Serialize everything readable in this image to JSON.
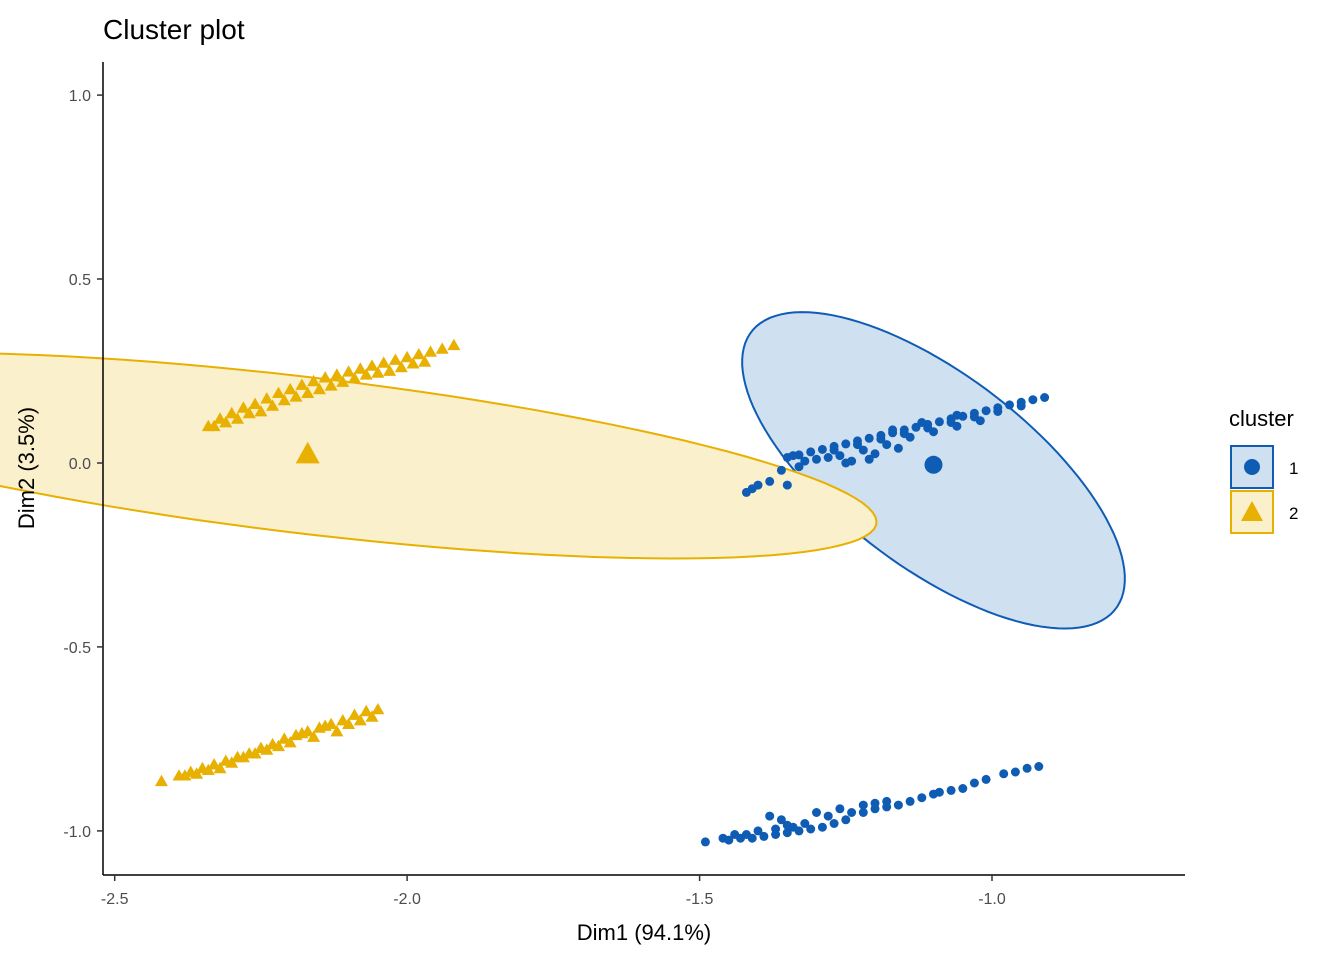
{
  "chart_data": {
    "type": "scatter",
    "title": "Cluster plot",
    "xlabel": "Dim1 (94.1%)",
    "ylabel": "Dim2 (3.5%)",
    "xlim": [
      -2.52,
      -0.67
    ],
    "ylim": [
      -1.12,
      1.09
    ],
    "xticks": [
      -2.5,
      -2.0,
      -1.5,
      -1.0
    ],
    "xtick_labels": [
      "-2.5",
      "-2.0",
      "-1.5",
      "-1.0"
    ],
    "yticks": [
      1.0,
      0.5,
      0.0,
      -0.5,
      -1.0
    ],
    "ytick_labels": [
      "1.0",
      "0.5",
      "0.0",
      "-0.5",
      "-1.0"
    ],
    "grid": false,
    "legend": {
      "title": "cluster",
      "position": "right",
      "entries": [
        {
          "label": "1",
          "shape": "circle",
          "color": "#0F5CB5"
        },
        {
          "label": "2",
          "shape": "triangle",
          "color": "#E8B000"
        }
      ]
    },
    "series": [
      {
        "name": "1",
        "shape": "circle",
        "color": "#0F5CB5",
        "fill": "#CFE0F0",
        "ellipse": {
          "center": [
            -1.1,
            -0.02
          ],
          "semi_axes": [
            0.205,
            0.5
          ],
          "angle_deg": 34
        },
        "centroid": [
          -1.1,
          -0.005
        ],
        "points": [
          [
            -0.91,
            0.178
          ],
          [
            -0.93,
            0.172
          ],
          [
            -0.95,
            0.165
          ],
          [
            -0.97,
            0.158
          ],
          [
            -0.99,
            0.15
          ],
          [
            -1.01,
            0.142
          ],
          [
            -1.03,
            0.135
          ],
          [
            -1.05,
            0.127
          ],
          [
            -1.07,
            0.12
          ],
          [
            -1.09,
            0.112
          ],
          [
            -1.11,
            0.105
          ],
          [
            -1.13,
            0.097
          ],
          [
            -1.15,
            0.09
          ],
          [
            -1.17,
            0.082
          ],
          [
            -1.19,
            0.075
          ],
          [
            -1.21,
            0.067
          ],
          [
            -1.23,
            0.06
          ],
          [
            -1.25,
            0.052
          ],
          [
            -1.27,
            0.045
          ],
          [
            -1.29,
            0.037
          ],
          [
            -1.31,
            0.03
          ],
          [
            -1.33,
            0.022
          ],
          [
            -1.35,
            0.015
          ],
          [
            -0.95,
            0.155
          ],
          [
            -0.99,
            0.14
          ],
          [
            -1.03,
            0.125
          ],
          [
            -1.07,
            0.11
          ],
          [
            -1.11,
            0.095
          ],
          [
            -1.15,
            0.08
          ],
          [
            -1.19,
            0.065
          ],
          [
            -1.23,
            0.05
          ],
          [
            -1.27,
            0.035
          ],
          [
            -1.02,
            0.115
          ],
          [
            -1.06,
            0.1
          ],
          [
            -1.1,
            0.085
          ],
          [
            -1.14,
            0.07
          ],
          [
            -1.18,
            0.05
          ],
          [
            -1.22,
            0.035
          ],
          [
            -1.26,
            0.02
          ],
          [
            -1.16,
            0.04
          ],
          [
            -1.2,
            0.025
          ],
          [
            -1.24,
            0.005
          ],
          [
            -1.28,
            0.015
          ],
          [
            -1.32,
            0.005
          ],
          [
            -1.06,
            0.13
          ],
          [
            -1.12,
            0.11
          ],
          [
            -1.17,
            0.09
          ],
          [
            -1.21,
            0.01
          ],
          [
            -1.25,
            0.0
          ],
          [
            -1.3,
            0.01
          ],
          [
            -1.34,
            0.02
          ],
          [
            -1.33,
            -0.01
          ],
          [
            -1.36,
            -0.02
          ],
          [
            -1.38,
            -0.05
          ],
          [
            -1.4,
            -0.06
          ],
          [
            -1.41,
            -0.07
          ],
          [
            -1.42,
            -0.08
          ],
          [
            -1.35,
            -0.06
          ],
          [
            -0.92,
            -0.825
          ],
          [
            -0.94,
            -0.83
          ],
          [
            -0.96,
            -0.84
          ],
          [
            -0.98,
            -0.845
          ],
          [
            -1.01,
            -0.86
          ],
          [
            -1.03,
            -0.87
          ],
          [
            -1.05,
            -0.885
          ],
          [
            -1.07,
            -0.89
          ],
          [
            -1.09,
            -0.895
          ],
          [
            -1.1,
            -0.9
          ],
          [
            -1.12,
            -0.91
          ],
          [
            -1.14,
            -0.92
          ],
          [
            -1.16,
            -0.93
          ],
          [
            -1.18,
            -0.935
          ],
          [
            -1.2,
            -0.94
          ],
          [
            -1.22,
            -0.95
          ],
          [
            -1.25,
            -0.97
          ],
          [
            -1.27,
            -0.98
          ],
          [
            -1.29,
            -0.99
          ],
          [
            -1.31,
            -0.995
          ],
          [
            -1.33,
            -1.0
          ],
          [
            -1.35,
            -1.005
          ],
          [
            -1.37,
            -1.01
          ],
          [
            -1.39,
            -1.015
          ],
          [
            -1.41,
            -1.02
          ],
          [
            -1.43,
            -1.02
          ],
          [
            -1.45,
            -1.025
          ],
          [
            -1.49,
            -1.03
          ],
          [
            -1.38,
            -0.96
          ],
          [
            -1.36,
            -0.97
          ],
          [
            -1.34,
            -0.99
          ],
          [
            -1.32,
            -0.98
          ],
          [
            -1.3,
            -0.95
          ],
          [
            -1.28,
            -0.96
          ],
          [
            -1.26,
            -0.94
          ],
          [
            -1.24,
            -0.95
          ],
          [
            -1.22,
            -0.93
          ],
          [
            -1.2,
            -0.925
          ],
          [
            -1.18,
            -0.92
          ],
          [
            -1.4,
            -1.0
          ],
          [
            -1.42,
            -1.01
          ],
          [
            -1.44,
            -1.01
          ],
          [
            -1.46,
            -1.02
          ],
          [
            -1.37,
            -0.995
          ],
          [
            -1.35,
            -0.985
          ]
        ]
      },
      {
        "name": "2",
        "shape": "triangle",
        "color": "#E8B000",
        "fill": "#FAF0CC",
        "ellipse": {
          "center": [
            -2.17,
            0.02
          ],
          "semi_axes": [
            0.21,
            0.99
          ],
          "angle_deg": 79
        },
        "centroid": [
          -2.17,
          0.025
        ],
        "points": [
          [
            -1.92,
            0.32
          ],
          [
            -1.94,
            0.31
          ],
          [
            -1.96,
            0.302
          ],
          [
            -1.98,
            0.295
          ],
          [
            -2.0,
            0.287
          ],
          [
            -2.02,
            0.28
          ],
          [
            -2.04,
            0.272
          ],
          [
            -2.06,
            0.264
          ],
          [
            -2.08,
            0.256
          ],
          [
            -2.1,
            0.248
          ],
          [
            -2.12,
            0.24
          ],
          [
            -2.14,
            0.232
          ],
          [
            -2.16,
            0.222
          ],
          [
            -2.18,
            0.212
          ],
          [
            -2.2,
            0.2
          ],
          [
            -2.22,
            0.19
          ],
          [
            -2.24,
            0.175
          ],
          [
            -2.26,
            0.16
          ],
          [
            -2.28,
            0.15
          ],
          [
            -2.3,
            0.135
          ],
          [
            -2.32,
            0.12
          ],
          [
            -2.34,
            0.1
          ],
          [
            -2.29,
            0.12
          ],
          [
            -2.25,
            0.14
          ],
          [
            -2.21,
            0.17
          ],
          [
            -2.17,
            0.19
          ],
          [
            -2.13,
            0.21
          ],
          [
            -2.09,
            0.23
          ],
          [
            -2.05,
            0.245
          ],
          [
            -2.01,
            0.26
          ],
          [
            -1.97,
            0.275
          ],
          [
            -2.07,
            0.24
          ],
          [
            -2.11,
            0.22
          ],
          [
            -2.15,
            0.2
          ],
          [
            -2.19,
            0.18
          ],
          [
            -2.23,
            0.155
          ],
          [
            -2.27,
            0.135
          ],
          [
            -2.31,
            0.11
          ],
          [
            -2.33,
            0.1
          ],
          [
            -2.03,
            0.25
          ],
          [
            -1.99,
            0.27
          ],
          [
            -2.05,
            -0.67
          ],
          [
            -2.07,
            -0.675
          ],
          [
            -2.09,
            -0.685
          ],
          [
            -2.11,
            -0.7
          ],
          [
            -2.13,
            -0.71
          ],
          [
            -2.15,
            -0.72
          ],
          [
            -2.17,
            -0.73
          ],
          [
            -2.19,
            -0.74
          ],
          [
            -2.21,
            -0.75
          ],
          [
            -2.23,
            -0.765
          ],
          [
            -2.25,
            -0.775
          ],
          [
            -2.27,
            -0.79
          ],
          [
            -2.29,
            -0.8
          ],
          [
            -2.31,
            -0.81
          ],
          [
            -2.33,
            -0.82
          ],
          [
            -2.35,
            -0.83
          ],
          [
            -2.37,
            -0.84
          ],
          [
            -2.39,
            -0.85
          ],
          [
            -2.42,
            -0.865
          ],
          [
            -2.12,
            -0.73
          ],
          [
            -2.16,
            -0.745
          ],
          [
            -2.2,
            -0.76
          ],
          [
            -2.24,
            -0.78
          ],
          [
            -2.28,
            -0.8
          ],
          [
            -2.32,
            -0.83
          ],
          [
            -2.36,
            -0.845
          ],
          [
            -2.14,
            -0.715
          ],
          [
            -2.18,
            -0.735
          ],
          [
            -2.22,
            -0.77
          ],
          [
            -2.26,
            -0.79
          ],
          [
            -2.3,
            -0.815
          ],
          [
            -2.34,
            -0.835
          ],
          [
            -2.38,
            -0.85
          ],
          [
            -2.1,
            -0.71
          ],
          [
            -2.06,
            -0.69
          ],
          [
            -2.08,
            -0.7
          ]
        ]
      }
    ]
  }
}
